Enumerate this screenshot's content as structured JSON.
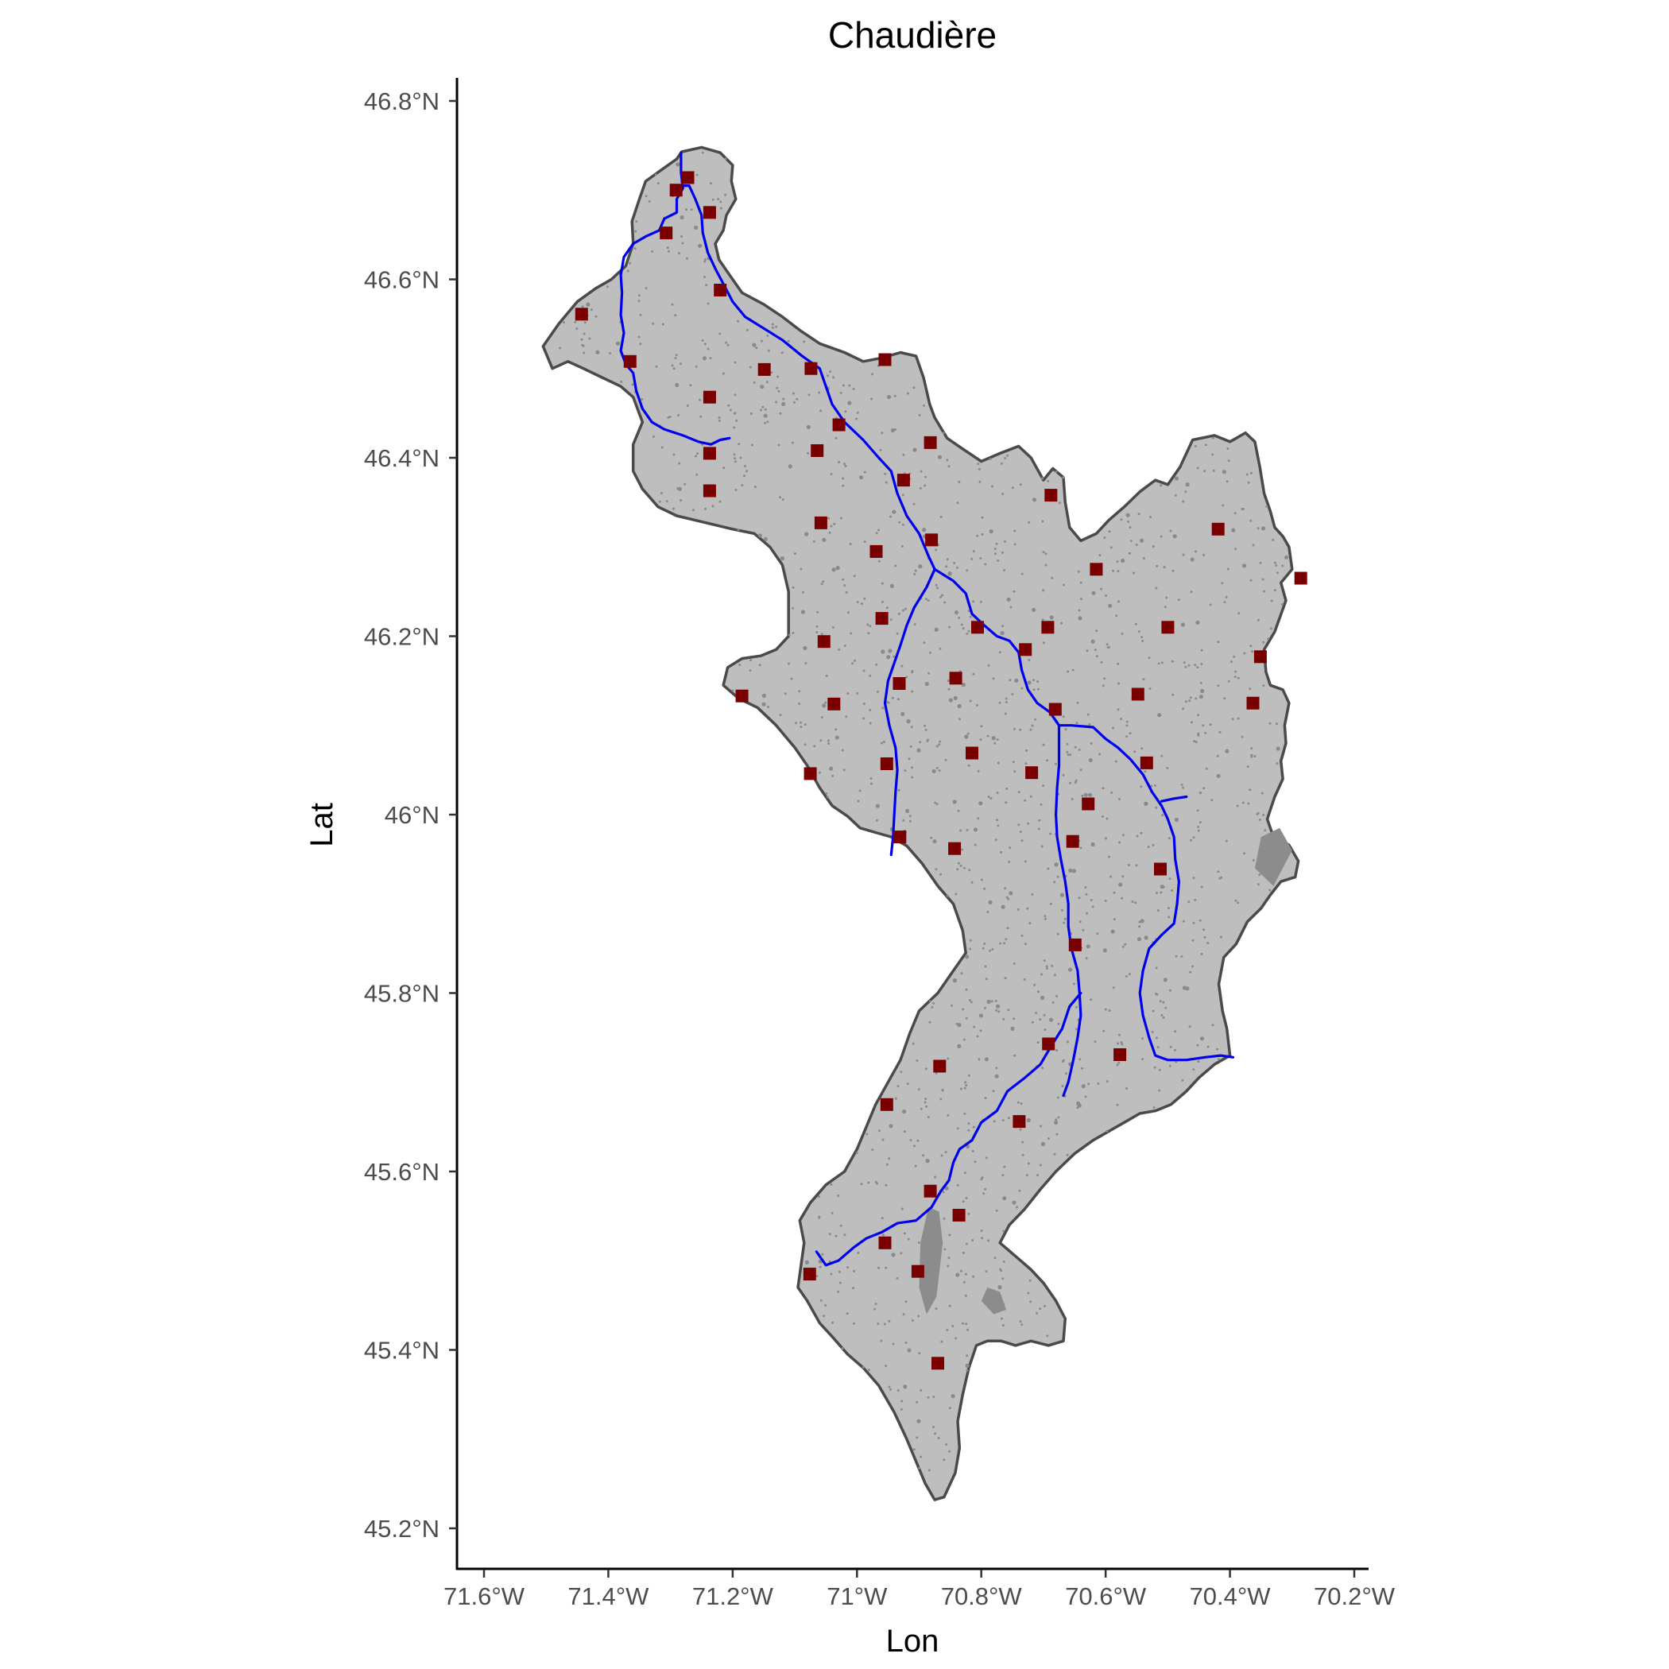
{
  "title": "Chaudière",
  "x_axis": {
    "label": "Lon",
    "ticks": [
      {
        "value": -71.6,
        "label": "71.6°W"
      },
      {
        "value": -71.4,
        "label": "71.4°W"
      },
      {
        "value": -71.2,
        "label": "71.2°W"
      },
      {
        "value": -71.0,
        "label": "71°W"
      },
      {
        "value": -70.8,
        "label": "70.8°W"
      },
      {
        "value": -70.6,
        "label": "70.6°W"
      },
      {
        "value": -70.4,
        "label": "70.4°W"
      },
      {
        "value": -70.2,
        "label": "70.2°W"
      }
    ]
  },
  "y_axis": {
    "label": "Lat",
    "ticks": [
      {
        "value": 46.8,
        "label": "46.8°N"
      },
      {
        "value": 46.6,
        "label": "46.6°N"
      },
      {
        "value": 46.4,
        "label": "46.4°N"
      },
      {
        "value": 46.2,
        "label": "46.2°N"
      },
      {
        "value": 46.0,
        "label": "46°N"
      },
      {
        "value": 45.8,
        "label": "45.8°N"
      },
      {
        "value": 45.6,
        "label": "45.6°N"
      },
      {
        "value": 45.4,
        "label": "45.4°N"
      },
      {
        "value": 45.2,
        "label": "45.2°N"
      }
    ]
  },
  "colors": {
    "basin_fill": "#bebebe",
    "basin_outline": "#4a4a4a",
    "river": "#0000ee",
    "station": "#7a0000",
    "lakes": "#8c8c8c"
  },
  "basin_outline": [
    [
      -71.282,
      46.743
    ],
    [
      -71.25,
      46.748
    ],
    [
      -71.22,
      46.742
    ],
    [
      -71.2,
      46.728
    ],
    [
      -71.202,
      46.71
    ],
    [
      -71.195,
      46.69
    ],
    [
      -71.21,
      46.672
    ],
    [
      -71.215,
      46.655
    ],
    [
      -71.228,
      46.64
    ],
    [
      -71.222,
      46.622
    ],
    [
      -71.205,
      46.605
    ],
    [
      -71.185,
      46.585
    ],
    [
      -71.15,
      46.572
    ],
    [
      -71.12,
      46.558
    ],
    [
      -71.09,
      46.542
    ],
    [
      -71.06,
      46.528
    ],
    [
      -71.02,
      46.518
    ],
    [
      -70.99,
      46.508
    ],
    [
      -70.96,
      46.512
    ],
    [
      -70.93,
      46.518
    ],
    [
      -70.905,
      46.514
    ],
    [
      -70.893,
      46.49
    ],
    [
      -70.883,
      46.46
    ],
    [
      -70.875,
      46.445
    ],
    [
      -70.855,
      46.422
    ],
    [
      -70.83,
      46.41
    ],
    [
      -70.8,
      46.396
    ],
    [
      -70.77,
      46.405
    ],
    [
      -70.74,
      46.413
    ],
    [
      -70.72,
      46.4
    ],
    [
      -70.7,
      46.375
    ],
    [
      -70.685,
      46.388
    ],
    [
      -70.668,
      46.378
    ],
    [
      -70.665,
      46.35
    ],
    [
      -70.658,
      46.322
    ],
    [
      -70.64,
      46.307
    ],
    [
      -70.615,
      46.315
    ],
    [
      -70.595,
      46.33
    ],
    [
      -70.57,
      46.345
    ],
    [
      -70.545,
      46.362
    ],
    [
      -70.52,
      46.375
    ],
    [
      -70.5,
      46.37
    ],
    [
      -70.48,
      46.39
    ],
    [
      -70.46,
      46.42
    ],
    [
      -70.425,
      46.425
    ],
    [
      -70.4,
      46.418
    ],
    [
      -70.375,
      46.428
    ],
    [
      -70.36,
      46.418
    ],
    [
      -70.352,
      46.39
    ],
    [
      -70.345,
      46.36
    ],
    [
      -70.335,
      46.34
    ],
    [
      -70.328,
      46.322
    ],
    [
      -70.315,
      46.312
    ],
    [
      -70.305,
      46.3
    ],
    [
      -70.3,
      46.275
    ],
    [
      -70.318,
      46.26
    ],
    [
      -70.31,
      46.24
    ],
    [
      -70.328,
      46.205
    ],
    [
      -70.345,
      46.185
    ],
    [
      -70.342,
      46.16
    ],
    [
      -70.335,
      46.145
    ],
    [
      -70.315,
      46.14
    ],
    [
      -70.305,
      46.125
    ],
    [
      -70.312,
      46.1
    ],
    [
      -70.31,
      46.08
    ],
    [
      -70.318,
      46.06
    ],
    [
      -70.315,
      46.04
    ],
    [
      -70.328,
      46.02
    ],
    [
      -70.34,
      45.995
    ],
    [
      -70.33,
      45.975
    ],
    [
      -70.305,
      45.966
    ],
    [
      -70.29,
      45.948
    ],
    [
      -70.295,
      45.93
    ],
    [
      -70.318,
      45.925
    ],
    [
      -70.335,
      45.91
    ],
    [
      -70.35,
      45.895
    ],
    [
      -70.372,
      45.88
    ],
    [
      -70.39,
      45.855
    ],
    [
      -70.41,
      45.84
    ],
    [
      -70.418,
      45.81
    ],
    [
      -70.412,
      45.78
    ],
    [
      -70.405,
      45.76
    ],
    [
      -70.4,
      45.73
    ],
    [
      -70.425,
      45.72
    ],
    [
      -70.45,
      45.705
    ],
    [
      -70.47,
      45.69
    ],
    [
      -70.495,
      45.675
    ],
    [
      -70.52,
      45.668
    ],
    [
      -70.545,
      45.665
    ],
    [
      -70.57,
      45.655
    ],
    [
      -70.595,
      45.645
    ],
    [
      -70.62,
      45.635
    ],
    [
      -70.65,
      45.62
    ],
    [
      -70.68,
      45.6
    ],
    [
      -70.705,
      45.58
    ],
    [
      -70.73,
      45.558
    ],
    [
      -70.755,
      45.54
    ],
    [
      -70.77,
      45.52
    ],
    [
      -70.745,
      45.505
    ],
    [
      -70.72,
      45.49
    ],
    [
      -70.7,
      45.475
    ],
    [
      -70.68,
      45.455
    ],
    [
      -70.665,
      45.435
    ],
    [
      -70.668,
      45.41
    ],
    [
      -70.692,
      45.405
    ],
    [
      -70.72,
      45.41
    ],
    [
      -70.745,
      45.405
    ],
    [
      -70.768,
      45.41
    ],
    [
      -70.79,
      45.41
    ],
    [
      -70.808,
      45.405
    ],
    [
      -70.82,
      45.38
    ],
    [
      -70.83,
      45.35
    ],
    [
      -70.838,
      45.32
    ],
    [
      -70.835,
      45.29
    ],
    [
      -70.842,
      45.262
    ],
    [
      -70.86,
      45.235
    ],
    [
      -70.875,
      45.232
    ],
    [
      -70.89,
      45.25
    ],
    [
      -70.905,
      45.275
    ],
    [
      -70.92,
      45.3
    ],
    [
      -70.94,
      45.33
    ],
    [
      -70.965,
      45.36
    ],
    [
      -70.99,
      45.38
    ],
    [
      -71.015,
      45.395
    ],
    [
      -71.04,
      45.415
    ],
    [
      -71.06,
      45.43
    ],
    [
      -71.08,
      45.455
    ],
    [
      -71.095,
      45.47
    ],
    [
      -71.09,
      45.495
    ],
    [
      -71.085,
      45.52
    ],
    [
      -71.092,
      45.545
    ],
    [
      -71.075,
      45.565
    ],
    [
      -71.05,
      45.585
    ],
    [
      -71.02,
      45.6
    ],
    [
      -71.0,
      45.625
    ],
    [
      -70.985,
      45.65
    ],
    [
      -70.97,
      45.675
    ],
    [
      -70.95,
      45.7
    ],
    [
      -70.93,
      45.725
    ],
    [
      -70.915,
      45.755
    ],
    [
      -70.9,
      45.78
    ],
    [
      -70.87,
      45.8
    ],
    [
      -70.845,
      45.825
    ],
    [
      -70.825,
      45.845
    ],
    [
      -70.83,
      45.87
    ],
    [
      -70.845,
      45.9
    ],
    [
      -70.87,
      45.92
    ],
    [
      -70.895,
      45.945
    ],
    [
      -70.92,
      45.965
    ],
    [
      -70.945,
      45.975
    ],
    [
      -70.97,
      45.98
    ],
    [
      -70.995,
      45.985
    ],
    [
      -71.015,
      45.998
    ],
    [
      -71.04,
      46.01
    ],
    [
      -71.06,
      46.03
    ],
    [
      -71.08,
      46.055
    ],
    [
      -71.1,
      46.075
    ],
    [
      -71.13,
      46.1
    ],
    [
      -71.16,
      46.12
    ],
    [
      -71.19,
      46.13
    ],
    [
      -71.215,
      46.145
    ],
    [
      -71.208,
      46.165
    ],
    [
      -71.185,
      46.175
    ],
    [
      -71.155,
      46.178
    ],
    [
      -71.13,
      46.185
    ],
    [
      -71.11,
      46.2
    ],
    [
      -71.11,
      46.225
    ],
    [
      -71.11,
      46.25
    ],
    [
      -71.12,
      46.28
    ],
    [
      -71.14,
      46.3
    ],
    [
      -71.165,
      46.315
    ],
    [
      -71.2,
      46.32
    ],
    [
      -71.23,
      46.325
    ],
    [
      -71.26,
      46.33
    ],
    [
      -71.29,
      46.335
    ],
    [
      -71.32,
      46.345
    ],
    [
      -71.345,
      46.365
    ],
    [
      -71.36,
      46.385
    ],
    [
      -71.36,
      46.415
    ],
    [
      -71.345,
      46.44
    ],
    [
      -71.36,
      46.468
    ],
    [
      -71.38,
      46.48
    ],
    [
      -71.41,
      46.49
    ],
    [
      -71.44,
      46.5
    ],
    [
      -71.465,
      46.508
    ],
    [
      -71.49,
      46.5
    ],
    [
      -71.505,
      46.525
    ],
    [
      -71.48,
      46.55
    ],
    [
      -71.45,
      46.575
    ],
    [
      -71.42,
      46.59
    ],
    [
      -71.395,
      46.6
    ],
    [
      -71.372,
      46.615
    ],
    [
      -71.36,
      46.64
    ],
    [
      -71.362,
      46.665
    ],
    [
      -71.35,
      46.69
    ],
    [
      -71.34,
      46.71
    ],
    [
      -71.31,
      46.725
    ],
    [
      -71.29,
      46.735
    ]
  ],
  "rivers": [
    [
      [
        -71.283,
        46.742
      ],
      [
        -71.283,
        46.72
      ],
      [
        -71.28,
        46.702
      ],
      [
        -71.29,
        46.69
      ],
      [
        -71.29,
        46.675
      ],
      [
        -71.31,
        46.668
      ],
      [
        -71.318,
        46.655
      ],
      [
        -71.34,
        46.648
      ],
      [
        -71.36,
        46.64
      ],
      [
        -71.375,
        46.625
      ],
      [
        -71.38,
        46.605
      ],
      [
        -71.378,
        46.585
      ],
      [
        -71.38,
        46.56
      ],
      [
        -71.375,
        46.54
      ],
      [
        -71.38,
        46.52
      ],
      [
        -71.372,
        46.505
      ],
      [
        -71.36,
        46.495
      ],
      [
        -71.355,
        46.475
      ],
      [
        -71.345,
        46.455
      ],
      [
        -71.33,
        46.44
      ],
      [
        -71.31,
        46.432
      ],
      [
        -71.28,
        46.425
      ],
      [
        -71.255,
        46.418
      ],
      [
        -71.235,
        46.415
      ],
      [
        -71.22,
        46.42
      ],
      [
        -71.205,
        46.422
      ]
    ],
    [
      [
        -71.283,
        46.705
      ],
      [
        -71.27,
        46.705
      ],
      [
        -71.26,
        46.69
      ],
      [
        -71.25,
        46.672
      ],
      [
        -71.248,
        46.652
      ],
      [
        -71.24,
        46.63
      ],
      [
        -71.228,
        46.612
      ],
      [
        -71.215,
        46.595
      ],
      [
        -71.2,
        46.575
      ],
      [
        -71.18,
        46.558
      ],
      [
        -71.15,
        46.545
      ],
      [
        -71.12,
        46.532
      ],
      [
        -71.09,
        46.515
      ],
      [
        -71.06,
        46.5
      ],
      [
        -71.05,
        46.48
      ],
      [
        -71.04,
        46.46
      ],
      [
        -71.02,
        46.44
      ],
      [
        -70.99,
        46.42
      ],
      [
        -70.965,
        46.4
      ],
      [
        -70.945,
        46.385
      ],
      [
        -70.935,
        46.36
      ],
      [
        -70.92,
        46.335
      ],
      [
        -70.9,
        46.315
      ],
      [
        -70.885,
        46.29
      ],
      [
        -70.875,
        46.275
      ],
      [
        -70.845,
        46.262
      ],
      [
        -70.825,
        46.248
      ],
      [
        -70.815,
        46.225
      ],
      [
        -70.795,
        46.212
      ],
      [
        -70.775,
        46.2
      ],
      [
        -70.755,
        46.195
      ],
      [
        -70.74,
        46.182
      ],
      [
        -70.735,
        46.162
      ],
      [
        -70.725,
        46.14
      ],
      [
        -70.71,
        46.125
      ],
      [
        -70.69,
        46.115
      ],
      [
        -70.675,
        46.1
      ],
      [
        -70.675,
        46.08
      ],
      [
        -70.675,
        46.055
      ],
      [
        -70.678,
        46.03
      ],
      [
        -70.68,
        46.0
      ],
      [
        -70.678,
        45.975
      ],
      [
        -70.672,
        45.95
      ],
      [
        -70.665,
        45.925
      ],
      [
        -70.66,
        45.9
      ],
      [
        -70.66,
        45.875
      ],
      [
        -70.655,
        45.85
      ],
      [
        -70.645,
        45.825
      ],
      [
        -70.642,
        45.8
      ],
      [
        -70.64,
        45.775
      ],
      [
        -70.645,
        45.75
      ],
      [
        -70.652,
        45.725
      ],
      [
        -70.66,
        45.7
      ],
      [
        -70.668,
        45.685
      ]
    ],
    [
      [
        -70.64,
        45.8
      ],
      [
        -70.658,
        45.785
      ],
      [
        -70.67,
        45.76
      ],
      [
        -70.688,
        45.74
      ],
      [
        -70.705,
        45.72
      ],
      [
        -70.73,
        45.705
      ],
      [
        -70.758,
        45.69
      ],
      [
        -70.775,
        45.668
      ],
      [
        -70.8,
        45.655
      ],
      [
        -70.815,
        45.635
      ],
      [
        -70.835,
        45.625
      ],
      [
        -70.845,
        45.61
      ],
      [
        -70.852,
        45.59
      ],
      [
        -70.865,
        45.578
      ],
      [
        -70.88,
        45.56
      ],
      [
        -70.905,
        45.545
      ],
      [
        -70.935,
        45.542
      ],
      [
        -70.96,
        45.532
      ],
      [
        -70.985,
        45.525
      ],
      [
        -71.005,
        45.515
      ],
      [
        -71.03,
        45.5
      ],
      [
        -71.05,
        45.495
      ],
      [
        -71.065,
        45.51
      ]
    ],
    [
      [
        -70.875,
        46.275
      ],
      [
        -70.888,
        46.255
      ],
      [
        -70.908,
        46.232
      ],
      [
        -70.92,
        46.212
      ],
      [
        -70.93,
        46.19
      ],
      [
        -70.94,
        46.17
      ],
      [
        -70.95,
        46.15
      ],
      [
        -70.955,
        46.125
      ],
      [
        -70.948,
        46.1
      ],
      [
        -70.938,
        46.075
      ],
      [
        -70.935,
        46.05
      ],
      [
        -70.938,
        46.025
      ],
      [
        -70.94,
        46.0
      ],
      [
        -70.942,
        45.975
      ],
      [
        -70.945,
        45.955
      ]
    ],
    [
      [
        -70.675,
        46.1
      ],
      [
        -70.655,
        46.1
      ],
      [
        -70.62,
        46.098
      ],
      [
        -70.6,
        46.085
      ],
      [
        -70.58,
        46.075
      ],
      [
        -70.56,
        46.062
      ],
      [
        -70.54,
        46.045
      ],
      [
        -70.525,
        46.025
      ],
      [
        -70.51,
        46.01
      ],
      [
        -70.5,
        45.995
      ],
      [
        -70.49,
        45.975
      ],
      [
        -70.488,
        45.95
      ],
      [
        -70.482,
        45.925
      ],
      [
        -70.485,
        45.9
      ],
      [
        -70.49,
        45.878
      ],
      [
        -70.51,
        45.865
      ],
      [
        -70.53,
        45.85
      ],
      [
        -70.54,
        45.825
      ],
      [
        -70.545,
        45.8
      ],
      [
        -70.54,
        45.775
      ],
      [
        -70.53,
        45.75
      ],
      [
        -70.52,
        45.73
      ],
      [
        -70.5,
        45.725
      ],
      [
        -70.47,
        45.725
      ],
      [
        -70.44,
        45.728
      ],
      [
        -70.415,
        45.73
      ],
      [
        -70.395,
        45.728
      ]
    ],
    [
      [
        -70.51,
        46.015
      ],
      [
        -70.49,
        46.018
      ],
      [
        -70.47,
        46.02
      ]
    ]
  ],
  "stations": [
    [
      -71.272,
      46.714
    ],
    [
      -71.291,
      46.7
    ],
    [
      -71.237,
      46.675
    ],
    [
      -71.307,
      46.652
    ],
    [
      -71.22,
      46.588
    ],
    [
      -71.443,
      46.561
    ],
    [
      -71.365,
      46.508
    ],
    [
      -71.149,
      46.499
    ],
    [
      -71.074,
      46.5
    ],
    [
      -70.955,
      46.51
    ],
    [
      -71.237,
      46.468
    ],
    [
      -71.029,
      46.437
    ],
    [
      -70.882,
      46.417
    ],
    [
      -71.064,
      46.408
    ],
    [
      -71.237,
      46.405
    ],
    [
      -70.925,
      46.375
    ],
    [
      -71.237,
      46.363
    ],
    [
      -70.688,
      46.358
    ],
    [
      -71.058,
      46.327
    ],
    [
      -70.88,
      46.308
    ],
    [
      -70.969,
      46.295
    ],
    [
      -70.419,
      46.32
    ],
    [
      -70.615,
      46.275
    ],
    [
      -70.286,
      46.265
    ],
    [
      -70.96,
      46.22
    ],
    [
      -70.806,
      46.21
    ],
    [
      -70.693,
      46.21
    ],
    [
      -70.5,
      46.21
    ],
    [
      -71.053,
      46.194
    ],
    [
      -70.729,
      46.185
    ],
    [
      -70.351,
      46.177
    ],
    [
      -70.841,
      46.153
    ],
    [
      -70.932,
      46.147
    ],
    [
      -71.185,
      46.133
    ],
    [
      -71.037,
      46.124
    ],
    [
      -70.548,
      46.135
    ],
    [
      -70.363,
      46.125
    ],
    [
      -70.681,
      46.118
    ],
    [
      -70.815,
      46.069
    ],
    [
      -70.952,
      46.057
    ],
    [
      -70.534,
      46.058
    ],
    [
      -71.075,
      46.046
    ],
    [
      -70.719,
      46.047
    ],
    [
      -70.628,
      46.012
    ],
    [
      -70.931,
      45.975
    ],
    [
      -70.653,
      45.97
    ],
    [
      -70.843,
      45.962
    ],
    [
      -70.512,
      45.939
    ],
    [
      -70.649,
      45.854
    ],
    [
      -70.692,
      45.743
    ],
    [
      -70.577,
      45.731
    ],
    [
      -70.867,
      45.718
    ],
    [
      -70.952,
      45.675
    ],
    [
      -70.739,
      45.656
    ],
    [
      -70.882,
      45.578
    ],
    [
      -70.836,
      45.551
    ],
    [
      -70.955,
      45.52
    ],
    [
      -70.902,
      45.488
    ],
    [
      -71.076,
      45.485
    ],
    [
      -70.87,
      45.385
    ]
  ],
  "lakes": [
    [
      [
        -70.885,
        45.56
      ],
      [
        -70.868,
        45.555
      ],
      [
        -70.862,
        45.52
      ],
      [
        -70.872,
        45.46
      ],
      [
        -70.888,
        45.44
      ],
      [
        -70.9,
        45.47
      ],
      [
        -70.898,
        45.52
      ]
    ],
    [
      [
        -70.32,
        45.985
      ],
      [
        -70.3,
        45.96
      ],
      [
        -70.33,
        45.92
      ],
      [
        -70.36,
        45.94
      ],
      [
        -70.35,
        45.975
      ]
    ],
    [
      [
        -70.79,
        45.47
      ],
      [
        -70.77,
        45.465
      ],
      [
        -70.76,
        45.445
      ],
      [
        -70.78,
        45.44
      ],
      [
        -70.8,
        45.455
      ]
    ]
  ]
}
